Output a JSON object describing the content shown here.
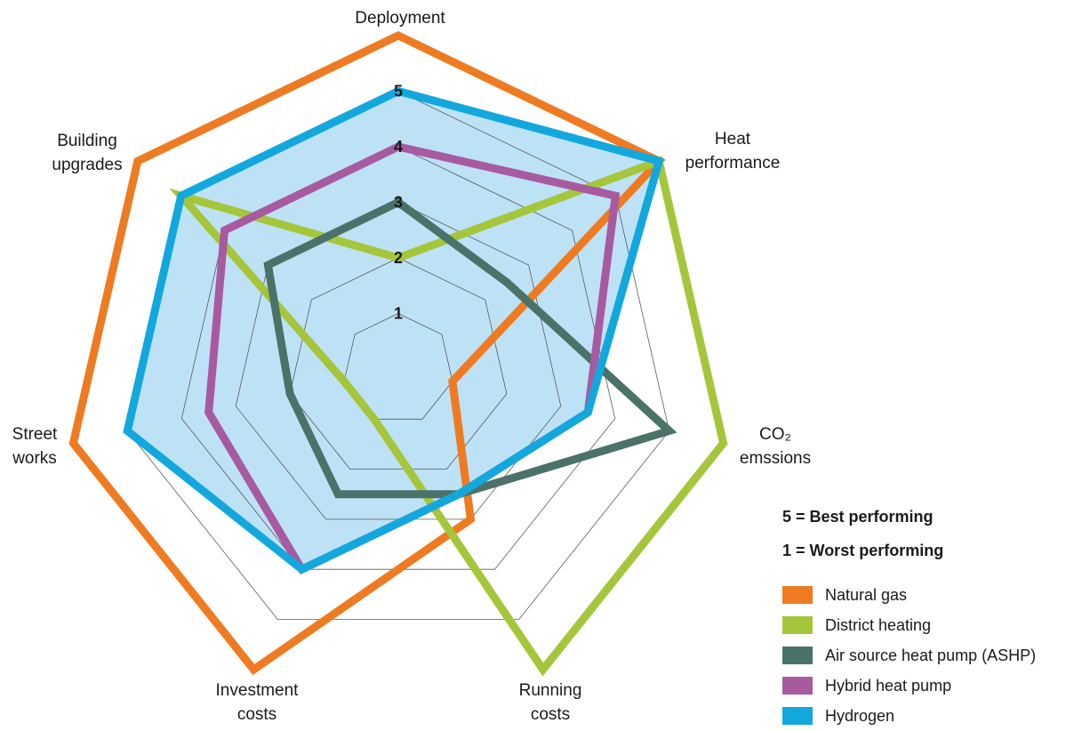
{
  "chart_data": {
    "type": "radar",
    "axes": [
      {
        "label": [
          "Deployment"
        ]
      },
      {
        "label": [
          "Heat",
          "performance"
        ]
      },
      {
        "label": [
          "CO₂",
          "emssions"
        ]
      },
      {
        "label": [
          "Running",
          "costs"
        ]
      },
      {
        "label": [
          "Investment",
          "costs"
        ]
      },
      {
        "label": [
          "Street",
          "works"
        ]
      },
      {
        "label": [
          "Building",
          "upgrades"
        ]
      }
    ],
    "ticks": [
      "1",
      "2",
      "3",
      "4",
      "5"
    ],
    "range": [
      0,
      6
    ],
    "series": [
      {
        "name": "Natural gas",
        "color": "#ee7b22",
        "fill": false,
        "values": [
          6,
          6,
          1,
          3,
          6,
          6,
          6
        ]
      },
      {
        "name": "District heating",
        "color": "#a5c63b",
        "fill": false,
        "values": [
          2,
          6,
          6,
          6,
          1,
          1,
          5
        ]
      },
      {
        "name": "Air source heat pump (ASHP)",
        "color": "#4b7268",
        "fill": false,
        "values": [
          3,
          2.5,
          5,
          2.5,
          2.5,
          2,
          3
        ]
      },
      {
        "name": "Hybrid heat pump",
        "color": "#a85aa1",
        "fill": false,
        "values": [
          4,
          5,
          3.5,
          2.5,
          4,
          3.5,
          4
        ]
      },
      {
        "name": "Hydrogen",
        "color": "#12a8de",
        "fill": true,
        "fill_color": "#bde2f6",
        "values": [
          5,
          6,
          3.5,
          2.5,
          4,
          5,
          5
        ]
      }
    ]
  },
  "notes": {
    "best": "5 = Best performing",
    "worst": "1 = Worst performing"
  }
}
